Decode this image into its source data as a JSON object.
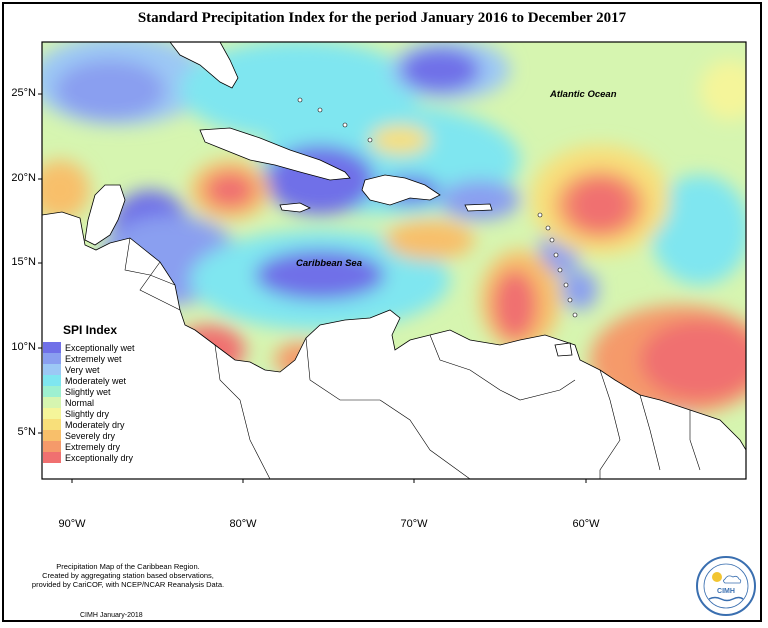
{
  "title": "Standard Precipitation Index for the period January 2016 to December 2017",
  "map": {
    "lat_labels": [
      "25°N",
      "20°N",
      "15°N",
      "10°N",
      "5°N"
    ],
    "lon_labels": [
      "90°W",
      "80°W",
      "70°W",
      "60°W"
    ],
    "region_labels": {
      "atlantic": "Atlantic Ocean",
      "caribbean": "Caribbean Sea"
    }
  },
  "legend": {
    "title": "SPI Index",
    "items": [
      {
        "label": "Exceptionally wet",
        "color": "#7070e8"
      },
      {
        "label": "Extremely wet",
        "color": "#8a9ff0"
      },
      {
        "label": "Very wet",
        "color": "#9cc8f5"
      },
      {
        "label": "Moderately wet",
        "color": "#7fe6f0"
      },
      {
        "label": "Slightly wet",
        "color": "#9ef0d0"
      },
      {
        "label": "Normal",
        "color": "#d6f5b0"
      },
      {
        "label": "Slightly dry",
        "color": "#f5f59a"
      },
      {
        "label": "Moderately dry",
        "color": "#f8df7a"
      },
      {
        "label": "Severely dry",
        "color": "#f8bf6a"
      },
      {
        "label": "Extremely dry",
        "color": "#f59a6a"
      },
      {
        "label": "Exceptionally dry",
        "color": "#f07070"
      }
    ]
  },
  "footer": {
    "line1": "Precipitation Map of the Caribbean Region.",
    "line2": "Created by aggregating station based observations,",
    "line3": "provided by CariCOF, with NCEP/NCAR Reanalysis Data.",
    "date": "CIMH January-2018"
  },
  "logo": {
    "text": "CIMH"
  }
}
